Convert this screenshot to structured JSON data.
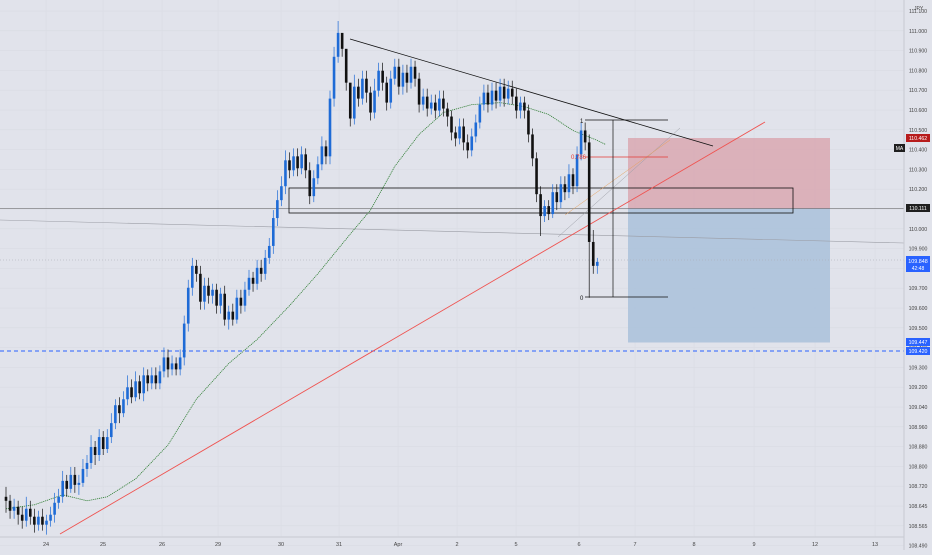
{
  "chart_data": {
    "type": "candlestick",
    "currency": "JPY",
    "colors": {
      "background": "#e1e3eb",
      "up": "#1e6bd6",
      "down": "#111111",
      "ma": "#2e7d32",
      "trendline": "#ef5350",
      "stop_zone": "#d9a8b2",
      "target_zone": "#a9c1db",
      "dashed_level": "#2962ff",
      "last_price_label": "#2962ff",
      "stop_label": "#b71c1c",
      "fib_red": "#e53935",
      "axis_text": "#444444",
      "black_line": "#111111"
    },
    "y_ticks": [
      "111.100",
      "111.000",
      "110.900",
      "110.800",
      "110.700",
      "110.600",
      "110.500",
      "110.400",
      "110.300",
      "110.200",
      "110.100",
      "110.000",
      "109.900",
      "109.800",
      "109.700",
      "109.600",
      "109.500",
      "109.400",
      "109.300",
      "109.200",
      "109.040",
      "108.960",
      "108.880",
      "108.800",
      "108.720",
      "108.645",
      "108.565",
      "108.490"
    ],
    "x_ticks": [
      "24",
      "25",
      "26",
      "29",
      "30",
      "31",
      "Apr",
      "2",
      "5",
      "6",
      "7",
      "8",
      "9",
      "12",
      "13"
    ],
    "price_labels": {
      "stop": "110.462",
      "entry": "110.111",
      "last": "109.848",
      "last_time": "42:48",
      "target": "109.447",
      "dashed": "109.420"
    },
    "ma_badge": "MA",
    "fib_labels": {
      "one": "1",
      "fib_786": "0.786",
      "zero": "0"
    },
    "candles": [
      [
        108.66,
        108.64,
        108.71,
        108.58
      ],
      [
        108.64,
        108.59,
        108.67,
        108.55
      ],
      [
        108.59,
        108.61,
        108.65,
        108.55
      ],
      [
        108.61,
        108.57,
        108.64,
        108.52
      ],
      [
        108.57,
        108.54,
        108.61,
        108.5
      ],
      [
        108.54,
        108.6,
        108.66,
        108.51
      ],
      [
        108.6,
        108.56,
        108.64,
        108.52
      ],
      [
        108.56,
        108.52,
        108.6,
        108.48
      ],
      [
        108.52,
        108.56,
        108.59,
        108.49
      ],
      [
        108.56,
        108.52,
        108.6,
        108.49
      ],
      [
        108.52,
        108.54,
        108.57,
        108.47
      ],
      [
        108.54,
        108.57,
        108.61,
        108.51
      ],
      [
        108.57,
        108.63,
        108.68,
        108.53
      ],
      [
        108.63,
        108.66,
        108.7,
        108.6
      ],
      [
        108.66,
        108.74,
        108.79,
        108.63
      ],
      [
        108.74,
        108.7,
        108.77,
        108.66
      ],
      [
        108.7,
        108.77,
        108.81,
        108.68
      ],
      [
        108.77,
        108.72,
        108.81,
        108.68
      ],
      [
        108.72,
        108.73,
        108.77,
        108.67
      ],
      [
        108.73,
        108.8,
        108.85,
        108.71
      ],
      [
        108.8,
        108.83,
        108.87,
        108.76
      ],
      [
        108.83,
        108.91,
        108.97,
        108.8
      ],
      [
        108.91,
        108.87,
        108.94,
        108.82
      ],
      [
        108.87,
        108.96,
        109.0,
        108.84
      ],
      [
        108.96,
        108.9,
        108.99,
        108.87
      ],
      [
        108.9,
        108.96,
        109.0,
        108.88
      ],
      [
        108.96,
        109.03,
        109.08,
        108.93
      ],
      [
        109.03,
        109.12,
        109.15,
        109.0
      ],
      [
        109.12,
        109.08,
        109.16,
        109.03
      ],
      [
        109.08,
        109.15,
        109.19,
        109.06
      ],
      [
        109.15,
        109.21,
        109.27,
        109.12
      ],
      [
        109.21,
        109.16,
        109.25,
        109.13
      ],
      [
        109.16,
        109.24,
        109.29,
        109.14
      ],
      [
        109.24,
        109.18,
        109.27,
        109.15
      ],
      [
        109.18,
        109.27,
        109.31,
        109.14
      ],
      [
        109.27,
        109.23,
        109.3,
        109.19
      ],
      [
        109.23,
        109.27,
        109.31,
        109.2
      ],
      [
        109.27,
        109.23,
        109.31,
        109.2
      ],
      [
        109.23,
        109.29,
        109.32,
        109.2
      ],
      [
        109.29,
        109.36,
        109.41,
        109.26
      ],
      [
        109.36,
        109.3,
        109.4,
        109.26
      ],
      [
        109.3,
        109.33,
        109.37,
        109.27
      ],
      [
        109.33,
        109.3,
        109.36,
        109.27
      ],
      [
        109.3,
        109.36,
        109.4,
        109.27
      ],
      [
        109.36,
        109.53,
        109.57,
        109.32
      ],
      [
        109.53,
        109.71,
        109.75,
        109.49
      ],
      [
        109.71,
        109.82,
        109.86,
        109.67
      ],
      [
        109.82,
        109.78,
        109.85,
        109.74
      ],
      [
        109.78,
        109.64,
        109.82,
        109.6
      ],
      [
        109.64,
        109.72,
        109.76,
        109.6
      ],
      [
        109.72,
        109.67,
        109.76,
        109.63
      ],
      [
        109.67,
        109.7,
        109.73,
        109.63
      ],
      [
        109.7,
        109.62,
        109.73,
        109.58
      ],
      [
        109.62,
        109.68,
        109.71,
        109.58
      ],
      [
        109.68,
        109.55,
        109.72,
        109.52
      ],
      [
        109.55,
        109.59,
        109.62,
        109.5
      ],
      [
        109.59,
        109.55,
        109.63,
        109.52
      ],
      [
        109.55,
        109.66,
        109.7,
        109.53
      ],
      [
        109.66,
        109.62,
        109.7,
        109.58
      ],
      [
        109.62,
        109.7,
        109.74,
        109.59
      ],
      [
        109.7,
        109.76,
        109.8,
        109.67
      ],
      [
        109.76,
        109.73,
        109.79,
        109.69
      ],
      [
        109.73,
        109.81,
        109.85,
        109.7
      ],
      [
        109.81,
        109.78,
        109.85,
        109.74
      ],
      [
        109.78,
        109.86,
        109.9,
        109.75
      ],
      [
        109.86,
        109.92,
        109.96,
        109.83
      ],
      [
        109.92,
        110.06,
        110.1,
        109.88
      ],
      [
        110.06,
        110.15,
        110.2,
        110.02
      ],
      [
        110.15,
        110.22,
        110.27,
        110.12
      ],
      [
        110.22,
        110.35,
        110.4,
        110.18
      ],
      [
        110.35,
        110.3,
        110.39,
        110.26
      ],
      [
        110.3,
        110.37,
        110.41,
        110.27
      ],
      [
        110.37,
        110.31,
        110.41,
        110.27
      ],
      [
        110.31,
        110.38,
        110.42,
        110.28
      ],
      [
        110.38,
        110.3,
        110.41,
        110.26
      ],
      [
        110.3,
        110.17,
        110.34,
        110.13
      ],
      [
        110.17,
        110.26,
        110.3,
        110.14
      ],
      [
        110.26,
        110.33,
        110.37,
        110.23
      ],
      [
        110.33,
        110.42,
        110.47,
        110.3
      ],
      [
        110.42,
        110.37,
        110.45,
        110.33
      ],
      [
        110.37,
        110.66,
        110.7,
        110.33
      ],
      [
        110.66,
        110.87,
        110.92,
        110.62
      ],
      [
        110.87,
        110.99,
        111.05,
        110.84
      ],
      [
        110.99,
        110.91,
        110.96,
        110.87
      ],
      [
        110.91,
        110.74,
        110.8,
        110.7
      ],
      [
        110.74,
        110.56,
        110.7,
        110.52
      ],
      [
        110.56,
        110.72,
        110.78,
        110.53
      ],
      [
        110.72,
        110.66,
        110.76,
        110.62
      ],
      [
        110.66,
        110.76,
        110.8,
        110.63
      ],
      [
        110.76,
        110.69,
        110.8,
        110.64
      ],
      [
        110.69,
        110.59,
        110.72,
        110.55
      ],
      [
        110.59,
        110.7,
        110.76,
        110.56
      ],
      [
        110.7,
        110.8,
        110.84,
        110.67
      ],
      [
        110.8,
        110.74,
        110.84,
        110.7
      ],
      [
        110.74,
        110.64,
        110.77,
        110.6
      ],
      [
        110.64,
        110.76,
        110.8,
        110.61
      ],
      [
        110.76,
        110.82,
        110.86,
        110.73
      ],
      [
        110.82,
        110.72,
        110.86,
        110.68
      ],
      [
        110.72,
        110.79,
        110.83,
        110.68
      ],
      [
        110.79,
        110.74,
        110.83,
        110.69
      ],
      [
        110.74,
        110.82,
        110.86,
        110.71
      ],
      [
        110.82,
        110.76,
        110.85,
        110.72
      ],
      [
        110.76,
        110.63,
        110.79,
        110.59
      ],
      [
        110.63,
        110.67,
        110.71,
        110.6
      ],
      [
        110.67,
        110.61,
        110.71,
        110.57
      ],
      [
        110.61,
        110.64,
        110.68,
        110.58
      ],
      [
        110.64,
        110.6,
        110.68,
        110.56
      ],
      [
        110.6,
        110.66,
        110.7,
        110.57
      ],
      [
        110.66,
        110.61,
        110.7,
        110.57
      ],
      [
        110.61,
        110.57,
        110.64,
        110.52
      ],
      [
        110.57,
        110.49,
        110.6,
        110.45
      ],
      [
        110.49,
        110.46,
        110.52,
        110.42
      ],
      [
        110.46,
        110.52,
        110.56,
        110.43
      ],
      [
        110.52,
        110.44,
        110.56,
        110.4
      ],
      [
        110.44,
        110.4,
        110.48,
        110.36
      ],
      [
        110.4,
        110.47,
        110.51,
        110.37
      ],
      [
        110.47,
        110.54,
        110.58,
        110.44
      ],
      [
        110.54,
        110.63,
        110.67,
        110.51
      ],
      [
        110.63,
        110.69,
        110.73,
        110.6
      ],
      [
        110.69,
        110.63,
        110.73,
        110.59
      ],
      [
        110.63,
        110.7,
        110.74,
        110.6
      ],
      [
        110.7,
        110.65,
        110.74,
        110.61
      ],
      [
        110.65,
        110.72,
        110.76,
        110.62
      ],
      [
        110.72,
        110.66,
        110.76,
        110.62
      ],
      [
        110.66,
        110.71,
        110.75,
        110.63
      ],
      [
        110.71,
        110.67,
        110.75,
        110.63
      ],
      [
        110.67,
        110.6,
        110.71,
        110.56
      ],
      [
        110.6,
        110.64,
        110.67,
        110.56
      ],
      [
        110.64,
        110.6,
        110.67,
        110.56
      ],
      [
        110.6,
        110.48,
        110.63,
        110.44
      ],
      [
        110.48,
        110.36,
        110.51,
        110.32
      ],
      [
        110.36,
        110.18,
        110.39,
        110.14
      ],
      [
        110.18,
        110.07,
        110.22,
        109.97
      ],
      [
        110.07,
        110.12,
        110.15,
        110.04
      ],
      [
        110.12,
        110.08,
        110.15,
        110.05
      ],
      [
        110.08,
        110.19,
        110.23,
        110.06
      ],
      [
        110.19,
        110.14,
        110.23,
        110.1
      ],
      [
        110.14,
        110.23,
        110.27,
        110.11
      ],
      [
        110.23,
        110.19,
        110.27,
        110.15
      ],
      [
        110.19,
        110.28,
        110.33,
        110.16
      ],
      [
        110.28,
        110.22,
        110.31,
        110.18
      ],
      [
        110.22,
        110.38,
        110.42,
        110.19
      ],
      [
        110.38,
        110.5,
        110.54,
        110.35
      ],
      [
        110.5,
        110.44,
        110.54,
        110.4
      ],
      [
        110.44,
        109.94,
        110.48,
        109.66
      ],
      [
        109.94,
        109.82,
        110.0,
        109.78
      ],
      [
        109.82,
        109.84,
        109.86,
        109.78
      ]
    ],
    "ma": [
      [
        0,
        108.6
      ],
      [
        7,
        108.62
      ],
      [
        14,
        108.67
      ],
      [
        20,
        108.64
      ],
      [
        25,
        108.66
      ],
      [
        32,
        108.75
      ],
      [
        40,
        108.92
      ],
      [
        47,
        109.15
      ],
      [
        55,
        109.33
      ],
      [
        62,
        109.45
      ],
      [
        70,
        109.62
      ],
      [
        77,
        109.78
      ],
      [
        85,
        109.98
      ],
      [
        90,
        110.1
      ],
      [
        96,
        110.32
      ],
      [
        102,
        110.48
      ],
      [
        108,
        110.59
      ],
      [
        115,
        110.63
      ],
      [
        122,
        110.64
      ],
      [
        128,
        110.62
      ],
      [
        134,
        110.58
      ],
      [
        140,
        110.5
      ],
      [
        146,
        110.45
      ],
      [
        148,
        110.43
      ]
    ]
  }
}
